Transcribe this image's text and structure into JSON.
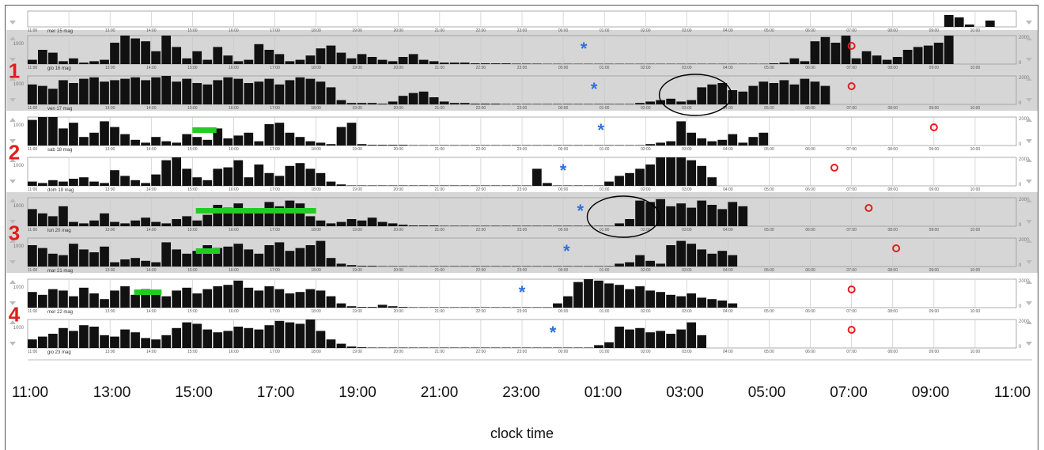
{
  "chart_data": {
    "type": "bar",
    "title": "",
    "xlabel": "clock time",
    "ylabel": "",
    "x_ticks": [
      "11:00",
      "13:00",
      "15:00",
      "17:00",
      "19:00",
      "21:00",
      "23:00",
      "01:00",
      "03:00",
      "05:00",
      "07:00",
      "09:00",
      "11:00"
    ],
    "mini_ticks": [
      "11:00",
      "13:00",
      "14:00",
      "15:00",
      "16:00",
      "17:00",
      "18:00",
      "19:00",
      "20:00",
      "21:00",
      "22:00",
      "23:00",
      "00:00",
      "01:00",
      "02:00",
      "03:00",
      "04:00",
      "05:00",
      "06:00",
      "07:00",
      "08:00",
      "09:00",
      "10:00"
    ],
    "y_tick_labels": [
      "1000",
      "2000",
      "0"
    ],
    "ylim": [
      0,
      2000
    ],
    "group_labels": [
      "1",
      "2",
      "3",
      "4"
    ],
    "days": [
      "mer 15 mag",
      "gio 16 mag",
      "ven 17 mag",
      "sab 18 mag",
      "dom 19 mag",
      "lun 20 mag",
      "mar 21 mag",
      "mer 22 mag",
      "gio 23 mag"
    ],
    "rows": [
      {
        "label": "mer 15 mag",
        "group": "",
        "shaded": false,
        "activity": [
          0,
          0,
          0,
          0,
          0,
          0,
          0,
          0,
          0,
          0,
          0,
          0,
          0,
          0,
          0,
          0,
          0,
          0,
          0,
          0,
          0,
          0,
          0,
          0,
          0,
          0,
          0,
          0,
          0,
          0,
          0,
          0,
          0,
          0,
          0,
          0,
          0,
          0,
          0,
          0,
          0,
          0,
          0,
          0,
          0,
          0,
          0,
          0,
          0,
          0,
          0,
          0,
          0,
          0,
          0,
          0,
          0,
          0,
          0,
          0,
          0,
          0,
          0,
          0,
          0,
          0,
          0,
          0,
          0,
          0,
          0,
          0,
          0,
          0,
          0,
          0,
          0,
          0,
          0,
          0,
          0,
          0,
          0,
          0,
          0,
          0,
          0,
          0,
          0,
          1500,
          1200,
          300,
          0,
          800,
          0,
          0
        ]
      },
      {
        "label": "gio 16 mag",
        "group": "1",
        "shaded": true,
        "activity": [
          300,
          1000,
          800,
          200,
          400,
          100,
          200,
          300,
          1500,
          2000,
          1800,
          1600,
          900,
          2000,
          1200,
          400,
          900,
          300,
          1200,
          600,
          200,
          300,
          1400,
          1000,
          700,
          200,
          300,
          600,
          1100,
          1300,
          800,
          400,
          700,
          500,
          300,
          200,
          500,
          700,
          300,
          200,
          100,
          100,
          100,
          50,
          50,
          50,
          50,
          30,
          30,
          30,
          20,
          20,
          20,
          20,
          20,
          20,
          20,
          20,
          20,
          20,
          20,
          20,
          20,
          20,
          20,
          20,
          20,
          20,
          20,
          20,
          20,
          20,
          50,
          100,
          400,
          200,
          1600,
          1900,
          1500,
          2000,
          400,
          900,
          600,
          300,
          500,
          1000,
          1200,
          1300,
          1500,
          2000
        ]
      },
      {
        "label": "ven 17 mag",
        "group": "1",
        "shaded": true,
        "activity": [
          1400,
          1300,
          1100,
          1700,
          1500,
          1800,
          1900,
          1600,
          1700,
          1800,
          1900,
          1700,
          1900,
          2000,
          1600,
          1800,
          1500,
          1400,
          1700,
          1900,
          1800,
          1500,
          1600,
          1800,
          1400,
          1700,
          1900,
          1800,
          1600,
          1200,
          300,
          100,
          100,
          100,
          50,
          200,
          600,
          800,
          900,
          500,
          200,
          100,
          100,
          50,
          50,
          50,
          30,
          30,
          30,
          30,
          30,
          30,
          30,
          30,
          30,
          30,
          30,
          30,
          30,
          100,
          200,
          300,
          400,
          200,
          300,
          1200,
          1400,
          1500,
          1000,
          900,
          1300,
          1600,
          1500,
          1700,
          1400,
          1800,
          1600,
          1300
        ]
      },
      {
        "label": "sab 18 mag",
        "group": "2",
        "shaded": false,
        "activity": [
          1800,
          2000,
          2000,
          1200,
          1600,
          600,
          900,
          1700,
          1300,
          800,
          400,
          200,
          600,
          300,
          200,
          800,
          600,
          400,
          1200,
          500,
          700,
          900,
          300,
          1500,
          1600,
          900,
          600,
          300,
          200,
          100,
          1300,
          1600,
          100,
          50,
          50,
          50,
          50,
          30,
          30,
          30,
          30,
          30,
          30,
          30,
          30,
          30,
          30,
          30,
          30,
          30,
          30,
          30,
          30,
          30,
          30,
          30,
          30,
          30,
          30,
          30,
          100,
          200,
          300,
          1700,
          900,
          500,
          300,
          400,
          800,
          200,
          600,
          900
        ]
      },
      {
        "label": "dom 19 mag",
        "group": "2",
        "shaded": false,
        "activity": [
          300,
          200,
          400,
          300,
          500,
          600,
          300,
          200,
          1100,
          700,
          400,
          200,
          800,
          1800,
          2000,
          1200,
          600,
          400,
          1200,
          1300,
          1800,
          600,
          1500,
          900,
          700,
          1400,
          1600,
          1200,
          900,
          300,
          100,
          30,
          30,
          30,
          30,
          30,
          30,
          30,
          30,
          30,
          30,
          30,
          30,
          30,
          30,
          30,
          30,
          30,
          30,
          1200,
          200,
          30,
          30,
          30,
          30,
          30,
          300,
          700,
          900,
          1200,
          1500,
          2000,
          2000,
          2000,
          1800,
          1400,
          600
        ]
      },
      {
        "label": "lun 20 mag",
        "group": "3",
        "shaded": true,
        "activity": [
          1200,
          900,
          700,
          1400,
          300,
          200,
          400,
          900,
          300,
          200,
          400,
          600,
          300,
          200,
          500,
          700,
          400,
          800,
          1500,
          1300,
          1600,
          1200,
          900,
          1700,
          1400,
          1800,
          1600,
          700,
          400,
          200,
          300,
          500,
          400,
          600,
          300,
          200,
          100,
          50,
          50,
          50,
          30,
          30,
          30,
          30,
          30,
          30,
          30,
          30,
          30,
          30,
          30,
          30,
          30,
          30,
          30,
          30,
          30,
          200,
          500,
          1800,
          1700,
          1900,
          1400,
          1600,
          1300,
          1800,
          1500,
          1200,
          1700,
          1400
        ]
      },
      {
        "label": "mar 21 mag",
        "group": "3",
        "shaded": true,
        "activity": [
          1500,
          1300,
          900,
          800,
          1600,
          1200,
          1000,
          1400,
          300,
          500,
          600,
          400,
          300,
          1700,
          1200,
          900,
          1100,
          1500,
          1300,
          1400,
          1600,
          1200,
          900,
          1500,
          1700,
          1100,
          1300,
          1500,
          1800,
          600,
          200,
          100,
          50,
          50,
          30,
          30,
          30,
          30,
          30,
          30,
          30,
          30,
          30,
          30,
          30,
          30,
          30,
          30,
          30,
          30,
          30,
          30,
          30,
          30,
          30,
          30,
          30,
          200,
          300,
          800,
          400,
          200,
          1500,
          1800,
          1600,
          1200,
          900,
          1100,
          800
        ]
      },
      {
        "label": "mer 22 mag",
        "group": "4",
        "shaded": false,
        "activity": [
          1100,
          900,
          1300,
          1200,
          800,
          1400,
          1000,
          600,
          1200,
          1500,
          900,
          1300,
          1100,
          800,
          1200,
          1400,
          1000,
          1300,
          1500,
          1600,
          1900,
          1400,
          1200,
          1500,
          1300,
          1000,
          1100,
          1300,
          1200,
          800,
          300,
          100,
          50,
          50,
          200,
          100,
          50,
          30,
          30,
          30,
          30,
          30,
          30,
          30,
          30,
          30,
          30,
          30,
          30,
          30,
          30,
          300,
          800,
          1800,
          2000,
          1900,
          1700,
          1600,
          1300,
          1500,
          1200,
          1100,
          900,
          800,
          1000,
          700,
          600,
          500,
          300
        ]
      },
      {
        "label": "gio 23 mag",
        "group": "4",
        "shaded": false,
        "activity": [
          600,
          800,
          1000,
          1400,
          1200,
          1600,
          1500,
          900,
          800,
          1300,
          1100,
          700,
          600,
          900,
          1400,
          1800,
          1700,
          1300,
          1100,
          1200,
          1500,
          1400,
          1300,
          1600,
          1900,
          1800,
          1700,
          2000,
          1200,
          600,
          300,
          100,
          50,
          30,
          30,
          30,
          30,
          30,
          30,
          30,
          30,
          30,
          30,
          30,
          30,
          30,
          30,
          30,
          30,
          30,
          30,
          30,
          30,
          30,
          30,
          200,
          400,
          1500,
          1300,
          1400,
          1100,
          1200,
          1000,
          1300,
          1800,
          900,
          0,
          0
        ]
      }
    ],
    "sleep_onset_row_days": [
      "mer 15 mag",
      "gio 16 mag",
      "ven 17 mag",
      "sab 18 mag",
      "dom 19 mag",
      "lun 20 mag",
      "mar 21 mag",
      "mer 22 mag",
      "gio 23 mag"
    ],
    "sleep_onset_markers": [
      {
        "row": 1,
        "time": "00:30"
      },
      {
        "row": 2,
        "time": "00:45"
      },
      {
        "row": 3,
        "time": "00:55"
      },
      {
        "row": 4,
        "time": "00:00"
      },
      {
        "row": 5,
        "time": "00:25"
      },
      {
        "row": 6,
        "time": "00:05"
      },
      {
        "row": 7,
        "time": "23:00"
      },
      {
        "row": 8,
        "time": "23:45"
      }
    ],
    "wake_markers": [
      {
        "row": 1,
        "time": "07:00"
      },
      {
        "row": 2,
        "time": "07:00"
      },
      {
        "row": 3,
        "time": "09:00"
      },
      {
        "row": 4,
        "time": "06:35"
      },
      {
        "row": 5,
        "time": "07:25"
      },
      {
        "row": 6,
        "time": "08:05"
      },
      {
        "row": 7,
        "time": "07:00"
      },
      {
        "row": 8,
        "time": "07:00"
      }
    ],
    "nap_bars": [
      {
        "row": 3,
        "start": "15:00",
        "end": "15:35"
      },
      {
        "row": 5,
        "start": "15:05",
        "end": "18:00"
      },
      {
        "row": 6,
        "start": "15:05",
        "end": "15:40"
      },
      {
        "row": 7,
        "start": "13:35",
        "end": "14:15"
      }
    ],
    "circles": [
      {
        "row": 2,
        "start": "02:20",
        "end": "04:05"
      },
      {
        "row": 5,
        "start": "00:35",
        "end": "02:20"
      }
    ],
    "colors": {
      "activity": "#111111",
      "shade": "#d6d6d6",
      "onset_marker": "#2f6fe0",
      "wake_marker": "#e01e1e",
      "nap_bar": "#22cc22",
      "group_label": "#e01e1e"
    }
  }
}
